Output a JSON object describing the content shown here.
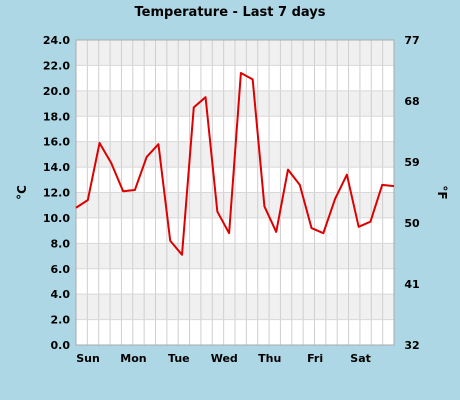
{
  "chart_data": {
    "type": "line",
    "title": "Temperature - Last 7 days",
    "ylabel_left": "°C",
    "ylabel_right": "°F",
    "ylim": [
      0,
      24
    ],
    "y_ticks": [
      "0.0",
      "2.0",
      "4.0",
      "6.0",
      "8.0",
      "10.0",
      "12.0",
      "14.0",
      "16.0",
      "18.0",
      "20.0",
      "22.0",
      "24.0"
    ],
    "y2_ticks": [
      "32",
      "41",
      "50",
      "59",
      "68",
      "77"
    ],
    "y2_range": [
      32,
      77
    ],
    "x_ticks": [
      "Sun",
      "Mon",
      "Tue",
      "Wed",
      "Thu",
      "Fri",
      "Sat"
    ],
    "grid": true,
    "series": [
      {
        "color": "#dd0000",
        "values": [
          10.8,
          11.4,
          15.9,
          14.3,
          12.1,
          12.2,
          14.8,
          15.8,
          8.2,
          7.1,
          18.7,
          19.5,
          10.5,
          8.8,
          21.4,
          20.9,
          10.9,
          8.9,
          13.8,
          12.6,
          9.2,
          8.8,
          11.5,
          13.4,
          9.3,
          9.7,
          12.6,
          12.5
        ]
      }
    ]
  }
}
